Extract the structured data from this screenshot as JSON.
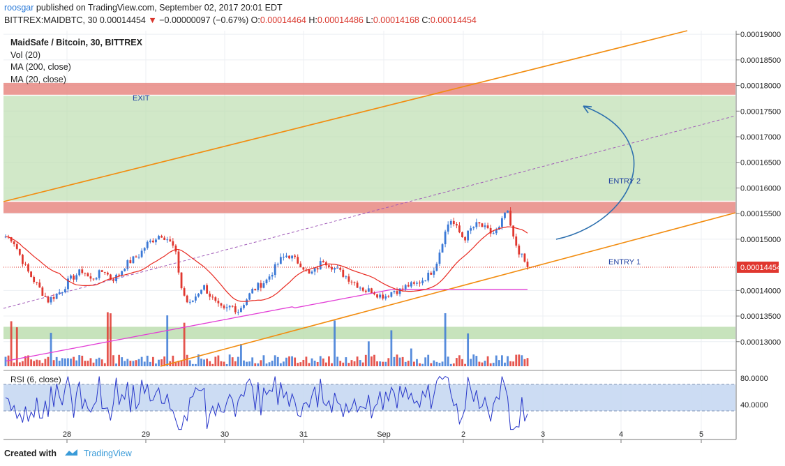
{
  "header": {
    "user": "roosgar",
    "published": "published on TradingView.com, September 02, 2017 20:01 EDT",
    "symbol": "BITTREX:MAIDBTC, 30",
    "last": "0.00014454",
    "arrow": "▼",
    "change": "−0.00000097 (−0.67%)",
    "o_label": "O:",
    "o": "0.00014464",
    "h_label": "H:",
    "h": "0.00014486",
    "l_label": "L:",
    "l": "0.00014168",
    "c_label": "C:",
    "c": "0.00014454"
  },
  "legend": {
    "title": "MaidSafe / Bitcoin, 30, BITTREX",
    "vol": "Vol (20)",
    "ma200": "MA (200, close)",
    "ma20": "MA (20, close)"
  },
  "annotations": {
    "exit": "EXIT",
    "entry2": "ENTRY 2",
    "entry1": "ENTRY 1",
    "price_tag": "0.00014454"
  },
  "rsi": {
    "label": "RSI (6, close)",
    "upper": "80.0000",
    "lower": "40.0000"
  },
  "footer": {
    "created": "Created with",
    "brand": "TradingView"
  },
  "colors": {
    "up": "#3a78d6",
    "down": "#e0372f",
    "ma200": "#e23fd6",
    "ma20": "#e8281f",
    "trend": "#f28c0f",
    "zone_green": "#b9dcab",
    "zone_red": "#e88883",
    "rsi_band": "#c7d8f2",
    "annotation": "#1f3fa0"
  },
  "chart_data": {
    "type": "candlestick",
    "title": "MaidSafe / Bitcoin, 30, BITTREX",
    "y_ticks": [
      "0.00019000",
      "0.00018500",
      "0.00018000",
      "0.00017500",
      "0.00017000",
      "0.00016500",
      "0.00016000",
      "0.00015500",
      "0.00015000",
      "0.00014000",
      "0.00013500",
      "0.00013000"
    ],
    "x_ticks": [
      "28",
      "29",
      "30",
      "31",
      "Sep",
      "2",
      "3",
      "4",
      "5"
    ],
    "ylim": [
      0.0001252,
      0.0001907
    ],
    "zones": [
      {
        "name": "green-top",
        "from": 0.0001575,
        "to": 0.000178
      },
      {
        "name": "red-top",
        "from": 0.0001782,
        "to": 0.0001805
      },
      {
        "name": "red-mid",
        "from": 0.0001551,
        "to": 0.0001573
      },
      {
        "name": "green-bottom",
        "from": 0.0001305,
        "to": 0.0001329
      }
    ],
    "close_series": [
      0.0001505,
      0.00015,
      0.000147,
      0.000144,
      0.000142,
      0.00014,
      0.000138,
      0.000139,
      0.00014,
      0.000142,
      0.000143,
      0.000144,
      0.000142,
      0.000143,
      0.000144,
      0.000142,
      0.000143,
      0.000145,
      0.000146,
      0.000147,
      0.000149,
      0.00015,
      0.000151,
      0.00015,
      0.000148,
      0.00014,
      0.000137,
      0.000139,
      0.000141,
      0.000139,
      0.000137,
      0.000136,
      0.000137,
      0.000136,
      0.000138,
      0.00014,
      0.000141,
      0.000142,
      0.000144,
      0.000146,
      0.000147,
      0.000146,
      0.000145,
      0.000143,
      0.000144,
      0.000146,
      0.000145,
      0.000144,
      0.000143,
      0.000142,
      0.000141,
      0.00014,
      0.00014,
      0.000139,
      0.000139,
      0.00014,
      0.00014,
      0.000141,
      0.000141,
      0.000142,
      0.000143,
      0.000145,
      0.00015,
      0.000154,
      0.000152,
      0.00015,
      0.000152,
      0.000153,
      0.000152,
      0.000151,
      0.000152,
      0.000156,
      0.00015,
      0.000147,
      0.000144545
    ]
  }
}
